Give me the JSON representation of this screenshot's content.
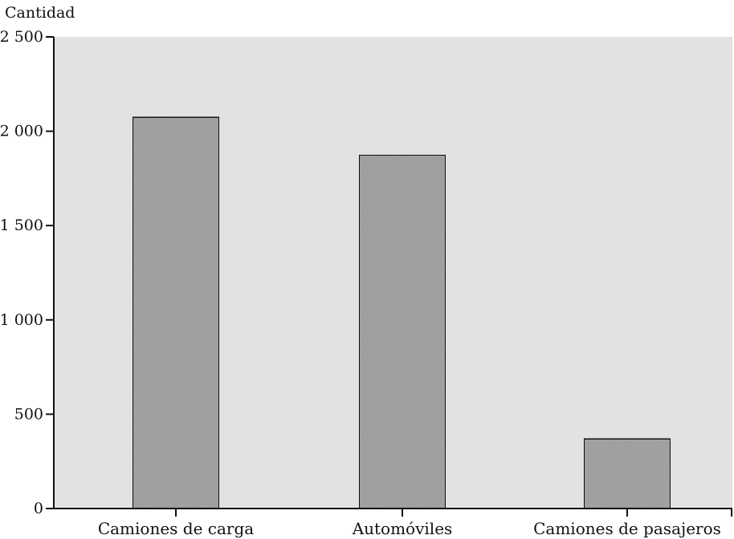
{
  "chart_data": {
    "type": "bar",
    "title": "",
    "ylabel": "Cantidad",
    "xlabel": "",
    "categories": [
      "Camiones de carga",
      "Automóviles",
      "Camiones de pasajeros"
    ],
    "values": [
      2075,
      1875,
      370
    ],
    "ylim": [
      0,
      2500
    ],
    "yticks": [
      0,
      500,
      1000,
      1500,
      2000,
      2500
    ],
    "ytick_labels": [
      "0",
      "500",
      "1 000",
      "1 500",
      "2 000",
      "2 500"
    ],
    "grid": false,
    "legend": "none",
    "colors": {
      "plot_background": "#e2e2e2",
      "bar_fill": "#a9a9a9",
      "bar_stroke": "#111111",
      "axis": "#111111"
    }
  }
}
